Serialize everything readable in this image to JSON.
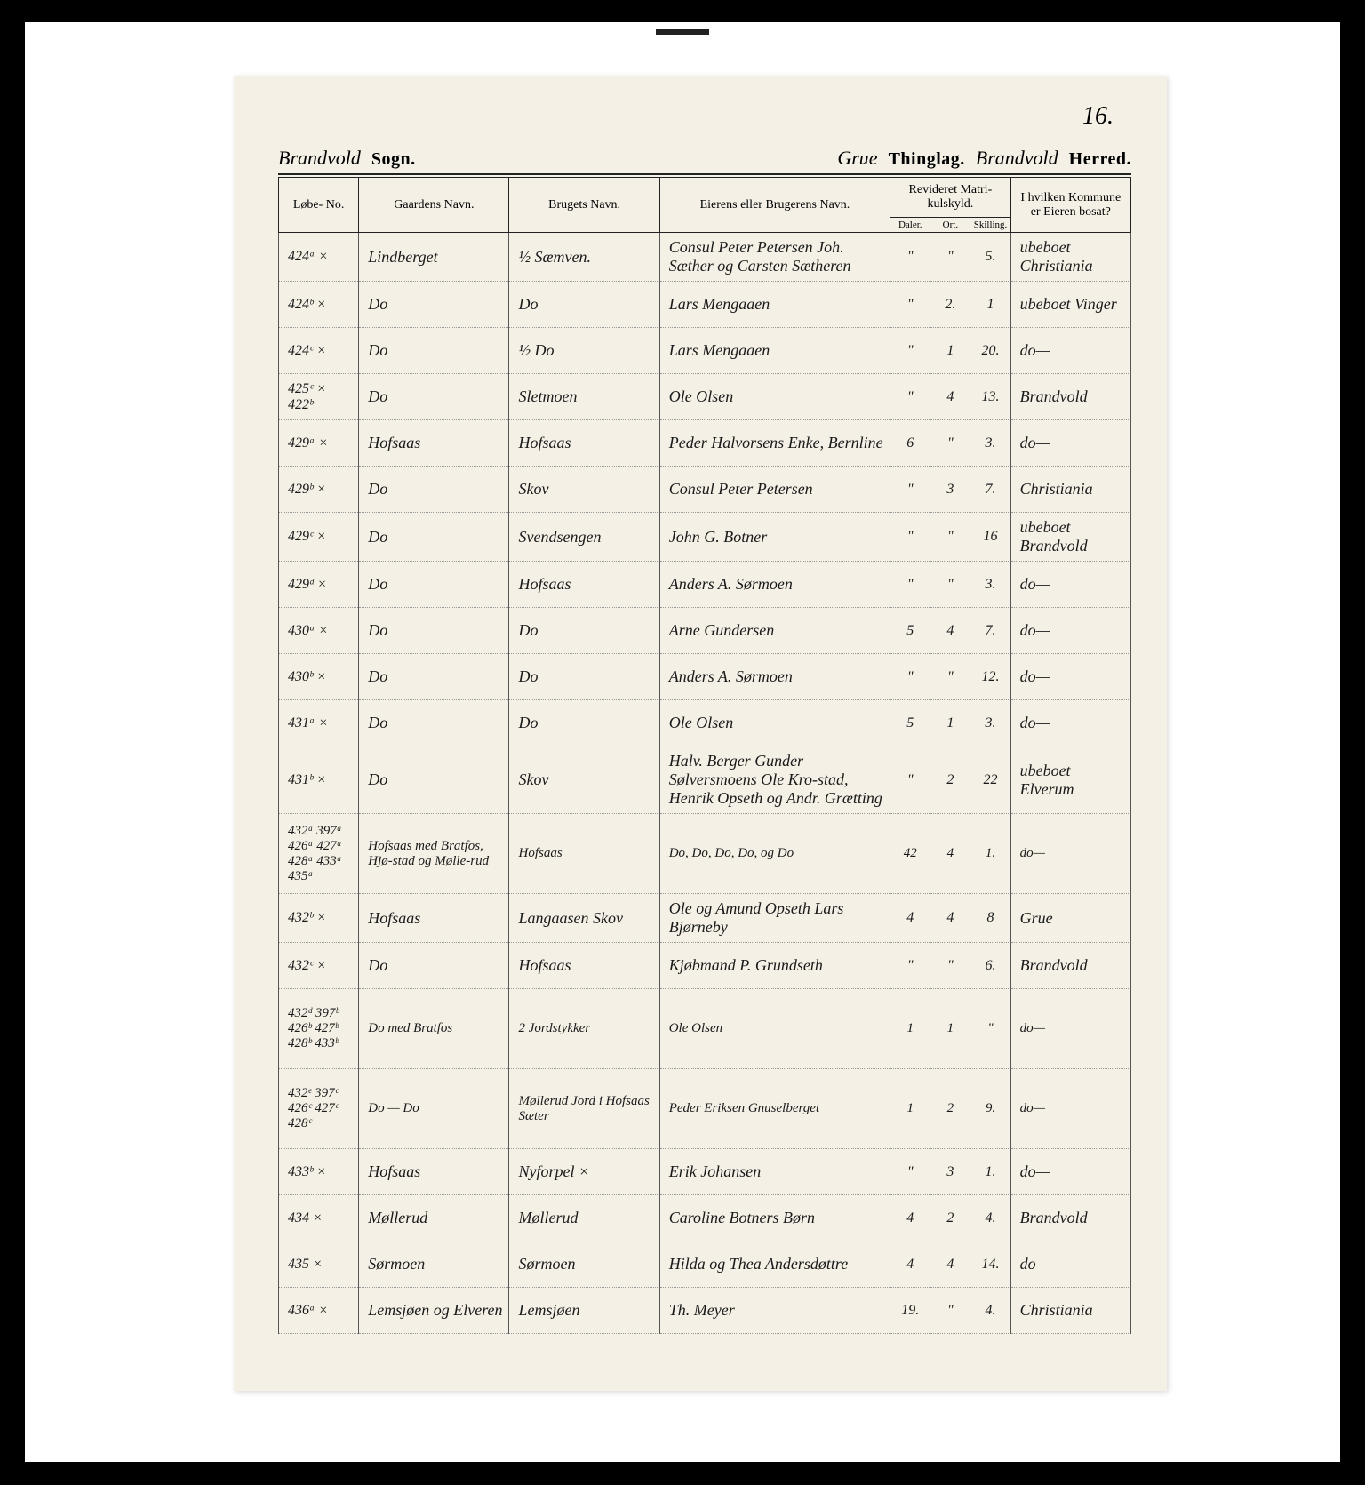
{
  "page_number": "16.",
  "header": {
    "sogn_script": "Brandvold",
    "sogn_label": "Sogn.",
    "thinglag_script": "Grue",
    "thinglag_label": "Thinglag.",
    "herred_script": "Brandvold",
    "herred_label": "Herred."
  },
  "columns": {
    "lobe": "Løbe-\nNo.",
    "gaard": "Gaardens Navn.",
    "brug": "Brugets Navn.",
    "eier": "Eierens eller Brugerens Navn.",
    "matrikul": "Revideret Matri-\nkulskyld.",
    "daler": "Daler.",
    "ort": "Ort.",
    "skilling": "Skilling.",
    "kommune": "I hvilken Kommune\ner Eieren bosat?"
  },
  "rows": [
    {
      "lobe": "424ᵃ ×",
      "gaard": "Lindberget",
      "brug": "½ Sæmven.",
      "eier": "Consul Peter Petersen Joh. Sæther og Carsten Sætheren",
      "d": "\"",
      "o": "\"",
      "s": "5.",
      "komm": "ubeboet Christiania"
    },
    {
      "lobe": "424ᵇ ×",
      "gaard": "Do",
      "brug": "Do",
      "eier": "Lars Mengaaen",
      "d": "\"",
      "o": "2.",
      "s": "1",
      "komm": "ubeboet Vinger"
    },
    {
      "lobe": "424ᶜ ×",
      "gaard": "Do",
      "brug": "½ Do",
      "eier": "Lars Mengaaen",
      "d": "\"",
      "o": "1",
      "s": "20.",
      "komm": "do—"
    },
    {
      "lobe": "425ᶜ ×\n422ᵇ",
      "gaard": "Do",
      "brug": "Sletmoen",
      "eier": "Ole Olsen",
      "d": "\"",
      "o": "4",
      "s": "13.",
      "komm": "Brandvold"
    },
    {
      "lobe": "429ᵃ ×",
      "gaard": "Hofsaas",
      "brug": "Hofsaas",
      "eier": "Peder Halvorsens Enke, Bernline",
      "d": "6",
      "o": "\"",
      "s": "3.",
      "komm": "do—"
    },
    {
      "lobe": "429ᵇ ×",
      "gaard": "Do",
      "brug": "Skov",
      "eier": "Consul Peter Petersen",
      "d": "\"",
      "o": "3",
      "s": "7.",
      "komm": "Christiania"
    },
    {
      "lobe": "429ᶜ ×",
      "gaard": "Do",
      "brug": "Svendsengen",
      "eier": "John G. Botner",
      "d": "\"",
      "o": "\"",
      "s": "16",
      "komm": "ubeboet Brandvold"
    },
    {
      "lobe": "429ᵈ ×",
      "gaard": "Do",
      "brug": "Hofsaas",
      "eier": "Anders A. Sørmoen",
      "d": "\"",
      "o": "\"",
      "s": "3.",
      "komm": "do—"
    },
    {
      "lobe": "430ᵃ ×",
      "gaard": "Do",
      "brug": "Do",
      "eier": "Arne Gundersen",
      "d": "5",
      "o": "4",
      "s": "7.",
      "komm": "do—"
    },
    {
      "lobe": "430ᵇ ×",
      "gaard": "Do",
      "brug": "Do",
      "eier": "Anders A. Sørmoen",
      "d": "\"",
      "o": "\"",
      "s": "12.",
      "komm": "do—"
    },
    {
      "lobe": "431ᵃ ×",
      "gaard": "Do",
      "brug": "Do",
      "eier": "Ole Olsen",
      "d": "5",
      "o": "1",
      "s": "3.",
      "komm": "do—"
    },
    {
      "lobe": "431ᵇ ×",
      "gaard": "Do",
      "brug": "Skov",
      "eier": "Halv. Berger Gunder Sølversmoens Ole Kro-stad, Henrik Opseth og Andr. Grætting",
      "d": "\"",
      "o": "2",
      "s": "22",
      "komm": "ubeboet Elverum"
    },
    {
      "lobe": "432ᵃ\n397ᵃ\n426ᵃ\n427ᵃ\n428ᵃ\n433ᵃ\n435ᵃ",
      "gaard": "Hofsaas med Bratfos, Hjø-stad og Mølle-rud",
      "brug": "Hofsaas",
      "eier": "Do, Do, Do, Do, og Do",
      "d": "42",
      "o": "4",
      "s": "1.",
      "komm": "do—",
      "tall": true
    },
    {
      "lobe": "432ᵇ ×",
      "gaard": "Hofsaas",
      "brug": "Langaasen Skov",
      "eier": "Ole og Amund Opseth Lars Bjørneby",
      "d": "4",
      "o": "4",
      "s": "8",
      "komm": "Grue"
    },
    {
      "lobe": "432ᶜ ×",
      "gaard": "Do",
      "brug": "Hofsaas",
      "eier": "Kjøbmand P. Grundseth",
      "d": "\"",
      "o": "\"",
      "s": "6.",
      "komm": "Brandvold"
    },
    {
      "lobe": "432ᵈ\n397ᵇ\n426ᵇ\n427ᵇ\n428ᵇ\n433ᵇ",
      "gaard": "Do med Bratfos",
      "brug": "2 Jordstykker",
      "eier": "Ole Olsen",
      "d": "1",
      "o": "1",
      "s": "\"",
      "komm": "do—",
      "tall": true
    },
    {
      "lobe": "432ᵉ\n397ᶜ\n426ᶜ\n427ᶜ\n428ᶜ",
      "gaard": "Do — Do",
      "brug": "Møllerud Jord i Hofsaas Sæter",
      "eier": "Peder Eriksen Gnuselberget",
      "d": "1",
      "o": "2",
      "s": "9.",
      "komm": "do—",
      "tall": true
    },
    {
      "lobe": "433ᵇ ×",
      "gaard": "Hofsaas",
      "brug": "Nyforpel ×",
      "eier": "Erik Johansen",
      "d": "\"",
      "o": "3",
      "s": "1.",
      "komm": "do—"
    },
    {
      "lobe": "434 ×",
      "gaard": "Møllerud",
      "brug": "Møllerud",
      "eier": "Caroline Botners Børn",
      "d": "4",
      "o": "2",
      "s": "4.",
      "komm": "Brandvold"
    },
    {
      "lobe": "435 ×",
      "gaard": "Sørmoen",
      "brug": "Sørmoen",
      "eier": "Hilda og Thea Andersdøttre",
      "d": "4",
      "o": "4",
      "s": "14.",
      "komm": "do—"
    },
    {
      "lobe": "436ᵃ ×",
      "gaard": "Lemsjøen og Elveren",
      "brug": "Lemsjøen",
      "eier": "Th. Meyer",
      "d": "19.",
      "o": "\"",
      "s": "4.",
      "komm": "Christiania"
    }
  ]
}
